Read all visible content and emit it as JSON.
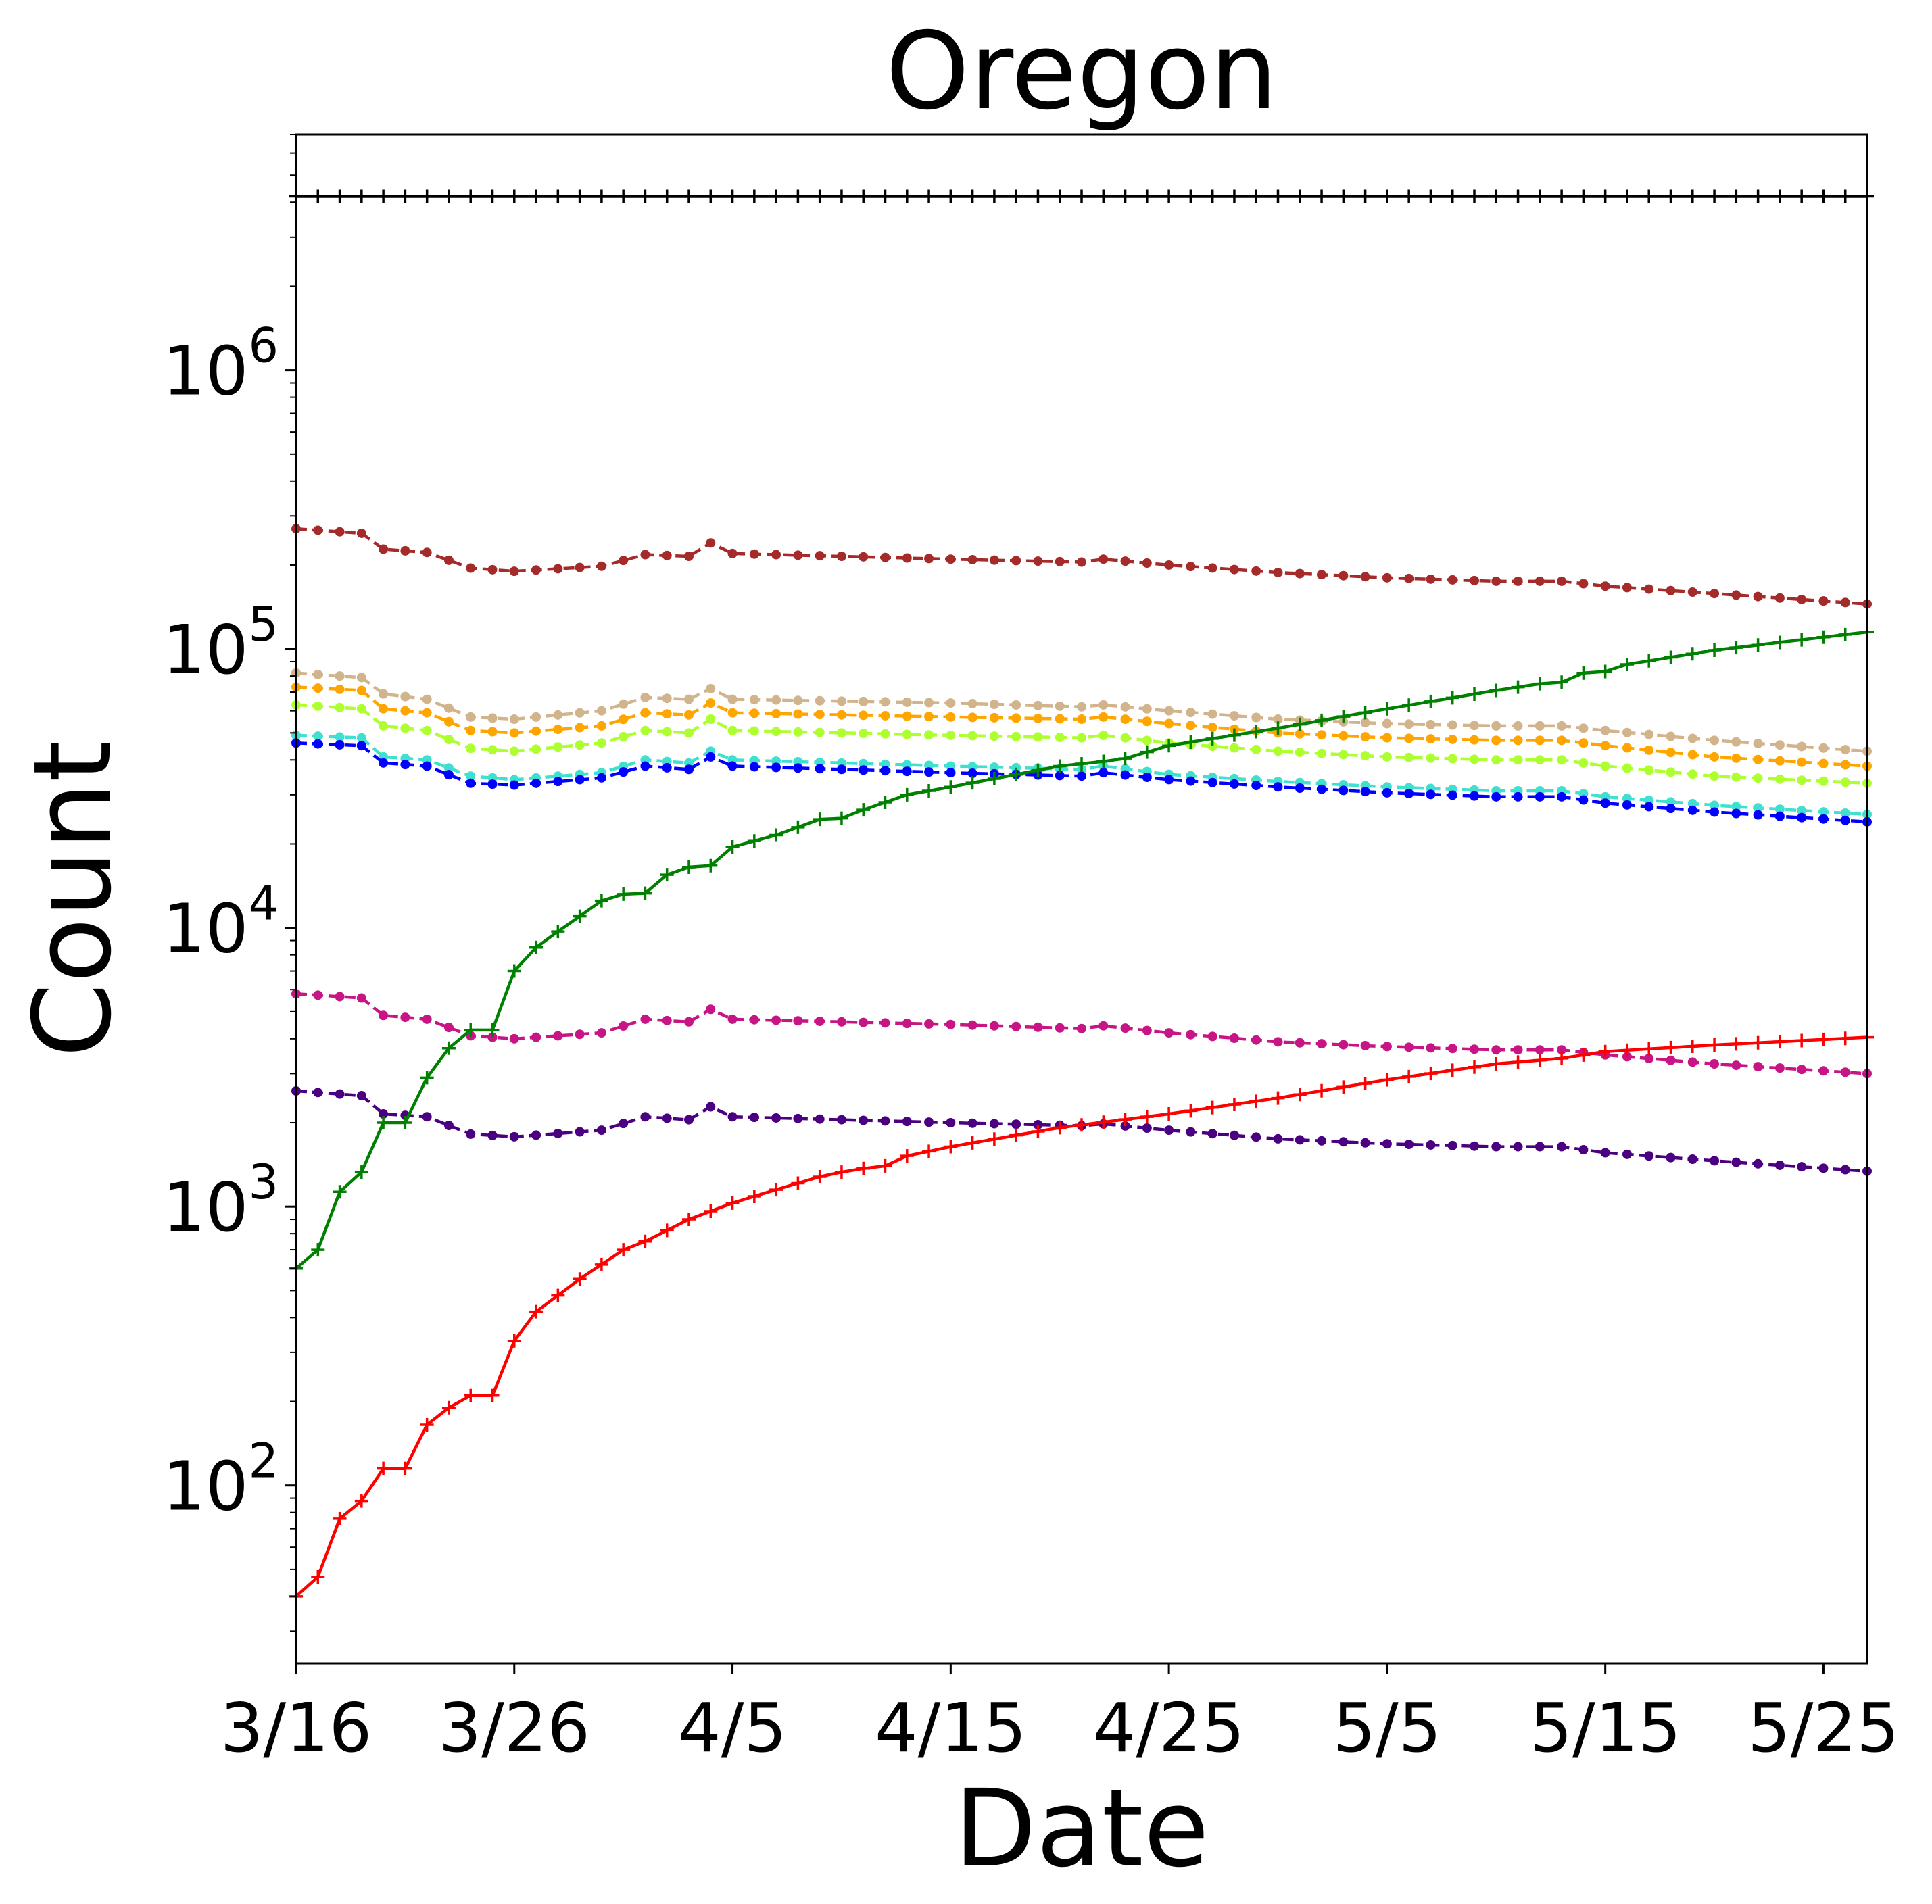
{
  "chart_data": {
    "type": "line",
    "title": "Oregon",
    "xlabel": "Date",
    "ylabel": "Count",
    "yscale": "log",
    "ylim": [
      23,
      7000000
    ],
    "xlim": [
      0,
      72
    ],
    "grid": false,
    "legend": "none",
    "x_ticks": [
      {
        "x": 0,
        "label": "3/16"
      },
      {
        "x": 10,
        "label": "3/26"
      },
      {
        "x": 20,
        "label": "4/5"
      },
      {
        "x": 30,
        "label": "4/15"
      },
      {
        "x": 40,
        "label": "4/25"
      },
      {
        "x": 50,
        "label": "5/5"
      },
      {
        "x": 60,
        "label": "5/15"
      },
      {
        "x": 70,
        "label": "5/25"
      }
    ],
    "y_ticks": [
      {
        "value": 100,
        "base": "10",
        "exp": "2"
      },
      {
        "value": 1000,
        "base": "10",
        "exp": "3"
      },
      {
        "value": 10000,
        "base": "10",
        "exp": "4"
      },
      {
        "value": 100000,
        "base": "10",
        "exp": "5"
      },
      {
        "value": 1000000,
        "base": "10",
        "exp": "6"
      }
    ],
    "series": [
      {
        "color": "#000000",
        "style": "solid",
        "marker": "plus",
        "anchors": [
          [
            0,
            4200000
          ],
          [
            72,
            4200000
          ]
        ]
      },
      {
        "color": "#a52a2a",
        "style": "dashed",
        "marker": "dot",
        "anchors": [
          [
            0,
            270000
          ],
          [
            3,
            260000
          ],
          [
            4,
            228000
          ],
          [
            6,
            222000
          ],
          [
            8,
            195000
          ],
          [
            10,
            190000
          ],
          [
            14,
            198000
          ],
          [
            16,
            218000
          ],
          [
            18,
            215000
          ],
          [
            19,
            240000
          ],
          [
            20,
            220000
          ],
          [
            25,
            215000
          ],
          [
            30,
            210000
          ],
          [
            36,
            205000
          ],
          [
            37,
            210000
          ],
          [
            40,
            200000
          ],
          [
            45,
            188000
          ],
          [
            50,
            180000
          ],
          [
            55,
            175000
          ],
          [
            58,
            175000
          ],
          [
            60,
            168000
          ],
          [
            65,
            158000
          ],
          [
            72,
            145000
          ]
        ]
      },
      {
        "color": "#d2b48c",
        "style": "dashed",
        "marker": "dot",
        "anchors": [
          [
            0,
            82000
          ],
          [
            3,
            79000
          ],
          [
            4,
            69000
          ],
          [
            6,
            66000
          ],
          [
            8,
            57000
          ],
          [
            10,
            56000
          ],
          [
            14,
            60000
          ],
          [
            16,
            67000
          ],
          [
            18,
            66000
          ],
          [
            19,
            72000
          ],
          [
            20,
            66000
          ],
          [
            25,
            65000
          ],
          [
            30,
            64000
          ],
          [
            36,
            62000
          ],
          [
            37,
            63000
          ],
          [
            40,
            60000
          ],
          [
            45,
            56000
          ],
          [
            50,
            54000
          ],
          [
            55,
            53000
          ],
          [
            58,
            53000
          ],
          [
            60,
            51000
          ],
          [
            65,
            47000
          ],
          [
            72,
            43000
          ]
        ]
      },
      {
        "color": "#ffa500",
        "style": "dashed",
        "marker": "dot",
        "anchors": [
          [
            0,
            73000
          ],
          [
            3,
            71000
          ],
          [
            4,
            61000
          ],
          [
            6,
            59000
          ],
          [
            8,
            51000
          ],
          [
            10,
            50000
          ],
          [
            14,
            53000
          ],
          [
            16,
            59000
          ],
          [
            18,
            58000
          ],
          [
            19,
            64000
          ],
          [
            20,
            59000
          ],
          [
            25,
            58000
          ],
          [
            30,
            57000
          ],
          [
            36,
            56000
          ],
          [
            37,
            57000
          ],
          [
            40,
            54000
          ],
          [
            45,
            50000
          ],
          [
            50,
            48000
          ],
          [
            55,
            47000
          ],
          [
            58,
            47000
          ],
          [
            60,
            45000
          ],
          [
            65,
            41000
          ],
          [
            72,
            38000
          ]
        ]
      },
      {
        "color": "#adff2f",
        "style": "dashed",
        "marker": "dot",
        "anchors": [
          [
            0,
            63000
          ],
          [
            3,
            61000
          ],
          [
            4,
            53000
          ],
          [
            6,
            51000
          ],
          [
            8,
            44000
          ],
          [
            10,
            43000
          ],
          [
            14,
            46000
          ],
          [
            16,
            51000
          ],
          [
            18,
            50000
          ],
          [
            19,
            56000
          ],
          [
            20,
            51000
          ],
          [
            25,
            50000
          ],
          [
            30,
            49000
          ],
          [
            36,
            48000
          ],
          [
            37,
            49000
          ],
          [
            40,
            46000
          ],
          [
            45,
            43000
          ],
          [
            50,
            41000
          ],
          [
            55,
            40000
          ],
          [
            58,
            40000
          ],
          [
            60,
            38000
          ],
          [
            65,
            35000
          ],
          [
            72,
            33000
          ]
        ]
      },
      {
        "color": "#40e0d0",
        "style": "dashed",
        "marker": "dot",
        "anchors": [
          [
            0,
            49000
          ],
          [
            3,
            48000
          ],
          [
            4,
            41000
          ],
          [
            6,
            40000
          ],
          [
            8,
            35000
          ],
          [
            10,
            34000
          ],
          [
            14,
            36000
          ],
          [
            16,
            40000
          ],
          [
            18,
            39000
          ],
          [
            19,
            43000
          ],
          [
            20,
            40000
          ],
          [
            25,
            39000
          ],
          [
            30,
            38000
          ],
          [
            36,
            37000
          ],
          [
            37,
            38000
          ],
          [
            40,
            35500
          ],
          [
            45,
            33500
          ],
          [
            50,
            32000
          ],
          [
            55,
            31000
          ],
          [
            58,
            31000
          ],
          [
            60,
            29500
          ],
          [
            65,
            27500
          ],
          [
            72,
            25500
          ]
        ]
      },
      {
        "color": "#0000ff",
        "style": "dashed",
        "marker": "dot",
        "anchors": [
          [
            0,
            46000
          ],
          [
            3,
            45000
          ],
          [
            4,
            39000
          ],
          [
            6,
            38000
          ],
          [
            8,
            33000
          ],
          [
            10,
            32500
          ],
          [
            14,
            34500
          ],
          [
            16,
            38000
          ],
          [
            18,
            37000
          ],
          [
            19,
            41000
          ],
          [
            20,
            38000
          ],
          [
            25,
            37000
          ],
          [
            30,
            36000
          ],
          [
            36,
            35000
          ],
          [
            37,
            36000
          ],
          [
            40,
            34000
          ],
          [
            45,
            32000
          ],
          [
            50,
            30500
          ],
          [
            55,
            29500
          ],
          [
            58,
            29500
          ],
          [
            60,
            28000
          ],
          [
            65,
            26000
          ],
          [
            72,
            24000
          ]
        ]
      },
      {
        "color": "#c71585",
        "style": "dashed",
        "marker": "dot",
        "anchors": [
          [
            0,
            5800
          ],
          [
            3,
            5600
          ],
          [
            4,
            4850
          ],
          [
            6,
            4700
          ],
          [
            8,
            4100
          ],
          [
            10,
            4000
          ],
          [
            14,
            4200
          ],
          [
            16,
            4700
          ],
          [
            18,
            4600
          ],
          [
            19,
            5100
          ],
          [
            20,
            4700
          ],
          [
            25,
            4600
          ],
          [
            30,
            4500
          ],
          [
            36,
            4350
          ],
          [
            37,
            4450
          ],
          [
            40,
            4200
          ],
          [
            45,
            3900
          ],
          [
            50,
            3750
          ],
          [
            55,
            3650
          ],
          [
            58,
            3650
          ],
          [
            60,
            3500
          ],
          [
            65,
            3250
          ],
          [
            72,
            3000
          ]
        ]
      },
      {
        "color": "#4b0082",
        "style": "dashed",
        "marker": "dot",
        "anchors": [
          [
            0,
            2600
          ],
          [
            3,
            2500
          ],
          [
            4,
            2150
          ],
          [
            6,
            2100
          ],
          [
            8,
            1820
          ],
          [
            10,
            1780
          ],
          [
            14,
            1880
          ],
          [
            16,
            2100
          ],
          [
            18,
            2050
          ],
          [
            19,
            2280
          ],
          [
            20,
            2100
          ],
          [
            25,
            2050
          ],
          [
            30,
            2000
          ],
          [
            36,
            1950
          ],
          [
            37,
            1980
          ],
          [
            40,
            1880
          ],
          [
            45,
            1750
          ],
          [
            50,
            1680
          ],
          [
            55,
            1640
          ],
          [
            58,
            1640
          ],
          [
            60,
            1560
          ],
          [
            65,
            1460
          ],
          [
            72,
            1340
          ]
        ]
      },
      {
        "color": "#008000",
        "style": "solid",
        "marker": "plus",
        "anchors": [
          [
            0,
            600
          ],
          [
            1,
            700
          ],
          [
            2,
            1130
          ],
          [
            3,
            1330
          ],
          [
            4,
            2000
          ],
          [
            5,
            2000
          ],
          [
            6,
            2900
          ],
          [
            7,
            3700
          ],
          [
            8,
            4300
          ],
          [
            9,
            4300
          ],
          [
            10,
            7000
          ],
          [
            11,
            8500
          ],
          [
            12,
            9700
          ],
          [
            13,
            11000
          ],
          [
            14,
            12500
          ],
          [
            15,
            13200
          ],
          [
            16,
            13300
          ],
          [
            17,
            15500
          ],
          [
            18,
            16500
          ],
          [
            19,
            16700
          ],
          [
            20,
            19500
          ],
          [
            22,
            21500
          ],
          [
            24,
            24500
          ],
          [
            25,
            24700
          ],
          [
            26,
            26500
          ],
          [
            28,
            30000
          ],
          [
            30,
            32000
          ],
          [
            35,
            38000
          ],
          [
            37,
            39500
          ],
          [
            38,
            40500
          ],
          [
            40,
            45000
          ],
          [
            45,
            52000
          ],
          [
            50,
            61000
          ],
          [
            55,
            71000
          ],
          [
            57,
            75000
          ],
          [
            58,
            76000
          ],
          [
            59,
            82000
          ],
          [
            60,
            83000
          ],
          [
            61,
            88000
          ],
          [
            65,
            99000
          ],
          [
            72,
            115000
          ]
        ]
      },
      {
        "color": "#ff0000",
        "style": "solid",
        "marker": "plus",
        "anchors": [
          [
            0,
            40
          ],
          [
            1,
            47
          ],
          [
            2,
            76
          ],
          [
            3,
            88
          ],
          [
            4,
            115
          ],
          [
            5,
            115
          ],
          [
            6,
            165
          ],
          [
            7,
            190
          ],
          [
            8,
            210
          ],
          [
            9,
            210
          ],
          [
            10,
            330
          ],
          [
            11,
            420
          ],
          [
            12,
            480
          ],
          [
            13,
            550
          ],
          [
            14,
            620
          ],
          [
            15,
            700
          ],
          [
            16,
            750
          ],
          [
            18,
            900
          ],
          [
            20,
            1030
          ],
          [
            22,
            1150
          ],
          [
            24,
            1280
          ],
          [
            25,
            1330
          ],
          [
            26,
            1370
          ],
          [
            27,
            1400
          ],
          [
            28,
            1520
          ],
          [
            30,
            1640
          ],
          [
            35,
            1920
          ],
          [
            40,
            2150
          ],
          [
            45,
            2450
          ],
          [
            50,
            2850
          ],
          [
            55,
            3250
          ],
          [
            58,
            3400
          ],
          [
            60,
            3600
          ],
          [
            65,
            3800
          ],
          [
            72,
            4050
          ]
        ]
      }
    ]
  }
}
